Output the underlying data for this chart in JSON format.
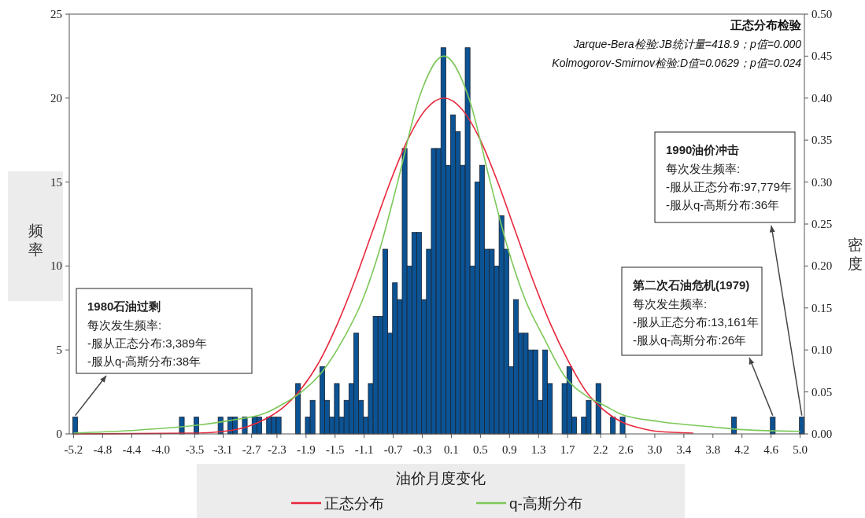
{
  "chart_data": {
    "type": "histogram",
    "xlabel": "油价月度变化",
    "ylabel": "频率",
    "y2label": "密度",
    "xlim": [
      -5.26,
      5.06
    ],
    "xticks": [
      -5.2,
      {
        "value": -4.792,
        "label": "-4.8"
      },
      {
        "value": -4.384,
        "label": "-4.4"
      },
      {
        "value": -3.976,
        "label": "-4.0"
      },
      -3.5,
      -3.1,
      -2.7,
      {
        "value": -2.344,
        "label": "-2.3"
      },
      {
        "value": -1.936,
        "label": "-1.9"
      },
      {
        "value": -1.528,
        "label": "-1.5"
      },
      {
        "value": -1.12,
        "label": "-1.1"
      },
      {
        "value": -0.712,
        "label": "-0.7"
      },
      {
        "value": -0.304,
        "label": "-0.3"
      },
      {
        "value": 0.104,
        "label": "0.1"
      },
      {
        "value": 0.512,
        "label": "0.5"
      },
      {
        "value": 0.92,
        "label": "0.9"
      },
      {
        "value": 1.328,
        "label": "1.3"
      },
      {
        "value": 1.736,
        "label": "1.7"
      },
      2.2,
      {
        "value": 2.552,
        "label": "2.6"
      },
      {
        "value": 2.96,
        "label": "3.0"
      },
      {
        "value": 3.368,
        "label": "3.4"
      },
      {
        "value": 3.776,
        "label": "3.8"
      },
      {
        "value": 4.184,
        "label": "4.2"
      },
      {
        "value": 4.592,
        "label": "4.6"
      },
      {
        "value": 5.0,
        "label": "5.0"
      }
    ],
    "ylim": [
      0,
      25
    ],
    "yticks": [
      0,
      5,
      10,
      15,
      20,
      25
    ],
    "y2lim": [
      0,
      0.5
    ],
    "y2ticks": [
      {
        "value": 0,
        "label": "0.00"
      },
      {
        "value": 0.05,
        "label": "0.05"
      },
      {
        "value": 0.1,
        "label": "0.10"
      },
      {
        "value": 0.15,
        "label": "0.15"
      },
      {
        "value": 0.2,
        "label": "0.20"
      },
      {
        "value": 0.25,
        "label": "0.25"
      },
      {
        "value": 0.3,
        "label": "0.30"
      },
      {
        "value": 0.35,
        "label": "0.35"
      },
      {
        "value": 0.4,
        "label": "0.40"
      },
      {
        "value": 0.45,
        "label": "0.45"
      },
      {
        "value": 0.5,
        "label": "0.50"
      }
    ],
    "grid": false,
    "legend": "bottom",
    "series": [
      {
        "color": "#0b5394",
        "bins": [
          -5.21,
          -5.142,
          -5.074,
          -5.006,
          -4.938,
          -4.87,
          -4.802,
          -4.734,
          -4.666,
          -4.598,
          -4.53,
          -4.462,
          -4.394,
          -4.326,
          -4.258,
          -4.19,
          -4.122,
          -4.054,
          -3.986,
          -3.918,
          -3.85,
          -3.782,
          -3.714,
          -3.646,
          -3.578,
          -3.51,
          -3.442,
          -3.374,
          -3.306,
          -3.238,
          -3.17,
          -3.102,
          -3.034,
          -2.966,
          -2.898,
          -2.83,
          -2.762,
          -2.694,
          -2.626,
          -2.558,
          -2.49,
          -2.422,
          -2.354,
          -2.286,
          -2.218,
          -2.15,
          -2.082,
          -2.014,
          -1.946,
          -1.878,
          -1.81,
          -1.742,
          -1.674,
          -1.606,
          -1.538,
          -1.47,
          -1.402,
          -1.334,
          -1.266,
          -1.198,
          -1.13,
          -1.062,
          -0.994,
          -0.926,
          -0.858,
          -0.79,
          -0.722,
          -0.654,
          -0.586,
          -0.518,
          -0.45,
          -0.382,
          -0.314,
          -0.246,
          -0.178,
          -0.11,
          -0.042,
          0.026,
          0.094,
          0.162,
          0.23,
          0.298,
          0.366,
          0.434,
          0.502,
          0.57,
          0.638,
          0.706,
          0.774,
          0.842,
          0.91,
          0.978,
          1.046,
          1.114,
          1.182,
          1.25,
          1.318,
          1.386,
          1.454,
          1.522,
          1.59,
          1.658,
          1.726,
          1.794,
          1.862,
          1.93,
          1.998,
          2.066,
          2.134,
          2.202,
          2.27,
          2.338,
          2.406,
          2.474,
          2.542,
          2.61,
          2.678,
          2.746,
          2.814,
          2.882,
          2.95,
          3.018,
          3.086,
          3.154,
          3.222,
          3.29,
          3.358,
          3.426,
          3.494,
          3.562,
          3.63,
          3.698,
          3.766,
          3.834,
          3.902,
          3.97,
          4.038,
          4.106,
          4.174,
          4.242,
          4.31,
          4.378,
          4.446,
          4.514,
          4.582,
          4.65,
          4.718,
          4.786,
          4.854,
          4.922,
          4.99,
          5.058
        ],
        "values": [
          1,
          0,
          0,
          0,
          0,
          0,
          0,
          0,
          0,
          0,
          0,
          0,
          0,
          0,
          0,
          0,
          0,
          0,
          0,
          0,
          0,
          0,
          1,
          0,
          0,
          1,
          0,
          0,
          0,
          0,
          1,
          0,
          1,
          1,
          0,
          1,
          0,
          1,
          1,
          0,
          1,
          1,
          1,
          0,
          0,
          0,
          3,
          0,
          1,
          2,
          0,
          4,
          2,
          1,
          3,
          1,
          2,
          3,
          6,
          2,
          1,
          3,
          7,
          7,
          11,
          6,
          9,
          8,
          17,
          10,
          12,
          12,
          8,
          11,
          17,
          17,
          23,
          16,
          19,
          18,
          16,
          23,
          10,
          15,
          16,
          11,
          11,
          10,
          13,
          11,
          4,
          8,
          6,
          6,
          5,
          5,
          2,
          5,
          3,
          0,
          0,
          3,
          4,
          1,
          0,
          1,
          2,
          0,
          3,
          0,
          0,
          1,
          0,
          1,
          0,
          0,
          0,
          0,
          0,
          0,
          0,
          0,
          0,
          0,
          0,
          0,
          0,
          0,
          0,
          0,
          0,
          0,
          0,
          0,
          0,
          0,
          1,
          0,
          0,
          0,
          0,
          0,
          0,
          0,
          1,
          0,
          0,
          0,
          0,
          0,
          1
        ]
      },
      {
        "type": "line",
        "name": "正态分布",
        "color": "#e8283c",
        "axis": "y2",
        "x": [
          -5.2,
          -3.5,
          -3,
          -2.75,
          -2.5,
          -2.25,
          -2,
          -1.75,
          -1.5,
          -1.25,
          -1,
          -0.75,
          -0.5,
          -0.25,
          0,
          0.25,
          0.5,
          0.75,
          1,
          1.25,
          1.5,
          1.75,
          2,
          2.25,
          2.5,
          2.75,
          3,
          3.5
        ],
        "values": [
          0,
          0.001,
          0.004,
          0.009,
          0.018,
          0.032,
          0.054,
          0.086,
          0.13,
          0.183,
          0.242,
          0.301,
          0.352,
          0.387,
          0.4,
          0.387,
          0.352,
          0.301,
          0.242,
          0.183,
          0.13,
          0.086,
          0.05,
          0.028,
          0.014,
          0.007,
          0.003,
          0.001
        ]
      },
      {
        "type": "line",
        "name": "q-高斯分布",
        "color": "#7cc85a",
        "axis": "y2",
        "x": [
          -5.2,
          -4.4,
          -3.5,
          -3,
          -2.5,
          -2.25,
          -2,
          -1.7,
          -1.4,
          -1.15,
          -0.9,
          -0.65,
          -0.35,
          0,
          0.35,
          0.65,
          0.9,
          1.15,
          1.4,
          1.7,
          2,
          2.25,
          2.5,
          3,
          3.8,
          4.2,
          5
        ],
        "values": [
          0.001,
          0.004,
          0.01,
          0.016,
          0.025,
          0.036,
          0.05,
          0.075,
          0.115,
          0.158,
          0.22,
          0.3,
          0.4,
          0.45,
          0.4,
          0.3,
          0.22,
          0.158,
          0.115,
          0.068,
          0.045,
          0.034,
          0.023,
          0.015,
          0.008,
          0.005,
          0.003
        ]
      }
    ],
    "annotations": [
      "正态分布检验\nJarque-Bera检验:JB统计量=418.9；p值=0.000\nKolmogorov-Smirnov检验:D值=0.0629；p值=0.024",
      "1980石油过剩",
      {
        "text": "每次发生频率:\n-服从正态分布:3,389年\n-服从q-高斯分布:38年",
        "x": -5.176,
        "y": 1
      },
      "第二次石油危机(1979)",
      {
        "text": "每次发生频率:\n-服从正态分布:13,161年\n-服从q-高斯分布:26年",
        "x": 4.616,
        "y": 1
      },
      "1990油价冲击",
      {
        "text": "每次发生频率:\n-服从正态分布:97,779年\n-服从q-高斯分布:36年",
        "x": 5.024,
        "y": 1
      }
    ]
  }
}
